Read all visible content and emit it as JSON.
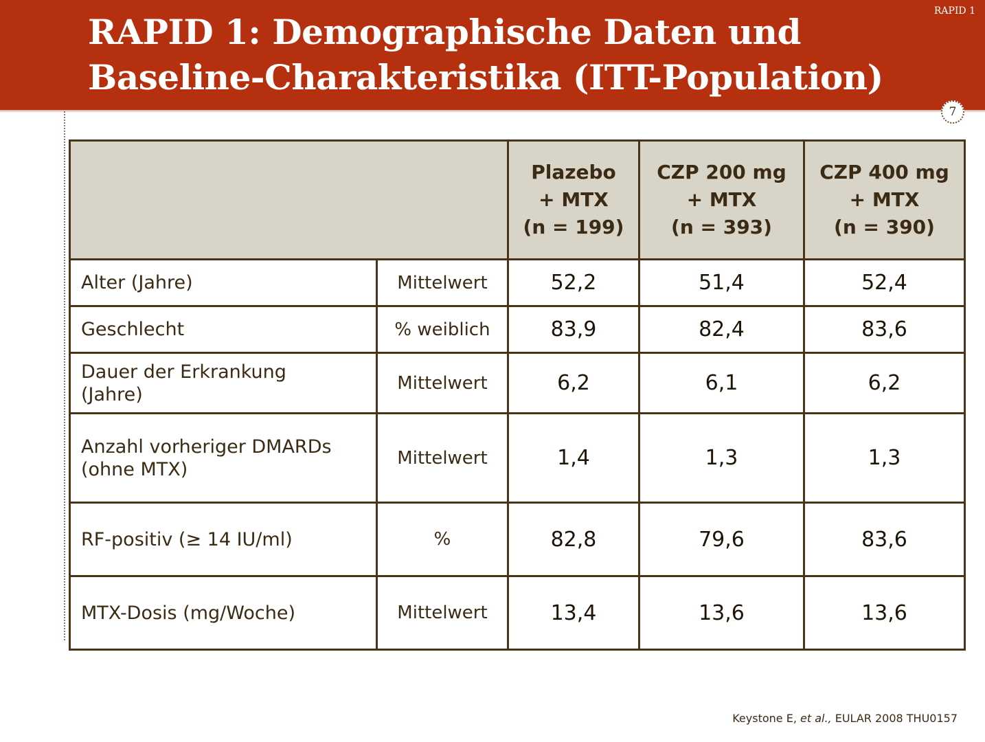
{
  "slide": {
    "title_line1": "RAPID 1: Demographische Daten und",
    "title_line2": "Baseline-Charakteristika (ITT-Population)",
    "tag": "RAPID 1",
    "page_number": "7"
  },
  "table": {
    "columns": [
      {
        "line1": "Plazebo",
        "line2": "+ MTX",
        "line3": "(n = 199)"
      },
      {
        "line1": "CZP 200 mg",
        "line2": "+ MTX",
        "line3": "(n = 393)"
      },
      {
        "line1": "CZP 400 mg",
        "line2": "+ MTX",
        "line3": "(n = 390)"
      }
    ],
    "rows": [
      {
        "label_line1": "Alter (Jahre)",
        "label_line2": "",
        "stat": "Mittelwert",
        "values": [
          "52,2",
          "51,4",
          "52,4"
        ]
      },
      {
        "label_line1": "Geschlecht",
        "label_line2": "",
        "stat": "% weiblich",
        "values": [
          "83,9",
          "82,4",
          "83,6"
        ]
      },
      {
        "label_line1": "Dauer der Erkrankung",
        "label_line2": "(Jahre)",
        "stat": "Mittelwert",
        "values": [
          "6,2",
          "6,1",
          "6,2"
        ]
      },
      {
        "label_line1": "Anzahl vorheriger DMARDs",
        "label_line2": "(ohne MTX)",
        "stat": "Mittelwert",
        "values": [
          "1,4",
          "1,3",
          "1,3"
        ]
      },
      {
        "label_line1": "RF-positiv (≥ 14 IU/ml)",
        "label_line2": "",
        "stat": "%",
        "values": [
          "82,8",
          "79,6",
          "83,6"
        ]
      },
      {
        "label_line1": "MTX-Dosis (mg/Woche)",
        "label_line2": "",
        "stat": "Mittelwert",
        "values": [
          "13,4",
          "13,6",
          "13,6"
        ]
      }
    ]
  },
  "citation": {
    "author": "Keystone E, ",
    "etal": "et al.,",
    "source": " EULAR 2008 THU0157"
  }
}
